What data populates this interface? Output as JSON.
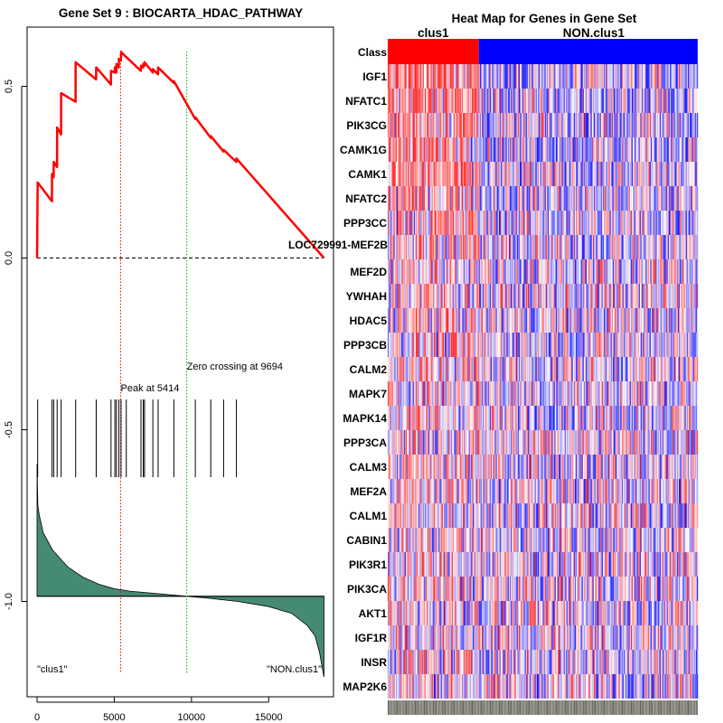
{
  "chart_data": [
    {
      "type": "line",
      "title": "Gene Set  9 : BIOCARTA_HDAC_PATHWAY",
      "x_ticks": [
        0,
        5000,
        10000,
        15000
      ],
      "y_ticks": [
        0.5,
        0.0,
        -0.5,
        -1.0
      ],
      "y_tick_labels": [
        "0.5",
        "0.0",
        "-0.5",
        "-1.0"
      ],
      "xlim": [
        0,
        18700
      ],
      "ylim": [
        -1.25,
        0.67
      ],
      "n_genes": 18583,
      "peak_position": 5414,
      "peak_label": "Peak at 5414",
      "zero_crossing": 9694,
      "zero_crossing_label": "Zero crossing at 9694",
      "left_label": "\"clus1\"",
      "right_label": "\"NON.clus1\"",
      "last_gene_label": "LOC729991-MEF2B",
      "hit_positions": [
        40,
        970,
        1080,
        1300,
        1560,
        2500,
        3830,
        4790,
        5040,
        5140,
        5300,
        5440,
        5780,
        6730,
        6880,
        6960,
        7500,
        7840,
        8860,
        10250,
        11250,
        12080,
        12910
      ],
      "running_es": [
        [
          0,
          0
        ],
        [
          40,
          0.22
        ],
        [
          965,
          0.165
        ],
        [
          970,
          0.245
        ],
        [
          1075,
          0.235
        ],
        [
          1080,
          0.28
        ],
        [
          1295,
          0.265
        ],
        [
          1300,
          0.38
        ],
        [
          1555,
          0.36
        ],
        [
          1560,
          0.48
        ],
        [
          2495,
          0.455
        ],
        [
          2500,
          0.57
        ],
        [
          3825,
          0.52
        ],
        [
          3830,
          0.555
        ],
        [
          4785,
          0.505
        ],
        [
          4790,
          0.545
        ],
        [
          5035,
          0.54
        ],
        [
          5040,
          0.555
        ],
        [
          5135,
          0.54
        ],
        [
          5140,
          0.565
        ],
        [
          5295,
          0.555
        ],
        [
          5300,
          0.58
        ],
        [
          5435,
          0.575
        ],
        [
          5440,
          0.6
        ],
        [
          5775,
          0.585
        ],
        [
          5780,
          0.585
        ],
        [
          6725,
          0.545
        ],
        [
          6730,
          0.56
        ],
        [
          6875,
          0.555
        ],
        [
          6880,
          0.565
        ],
        [
          6955,
          0.56
        ],
        [
          6960,
          0.57
        ],
        [
          7495,
          0.54
        ],
        [
          7500,
          0.55
        ],
        [
          7835,
          0.535
        ],
        [
          7840,
          0.555
        ],
        [
          8855,
          0.51
        ],
        [
          8860,
          0.515
        ],
        [
          10245,
          0.405
        ],
        [
          10250,
          0.41
        ],
        [
          11245,
          0.35
        ],
        [
          11250,
          0.355
        ],
        [
          12075,
          0.31
        ],
        [
          12080,
          0.315
        ],
        [
          12905,
          0.28
        ],
        [
          12910,
          0.29
        ],
        [
          18583,
          0.0
        ]
      ],
      "ranked_metric_profile": [
        [
          0,
          -0.6
        ],
        [
          50,
          -0.72
        ],
        [
          150,
          -0.75
        ],
        [
          400,
          -0.8
        ],
        [
          1000,
          -0.85
        ],
        [
          2000,
          -0.9
        ],
        [
          3000,
          -0.93
        ],
        [
          4000,
          -0.95
        ],
        [
          5000,
          -0.963
        ],
        [
          6000,
          -0.97
        ],
        [
          8000,
          -0.978
        ],
        [
          9694,
          -0.985
        ],
        [
          11000,
          -0.99
        ],
        [
          13000,
          -1.0
        ],
        [
          15000,
          -1.015
        ],
        [
          16500,
          -1.035
        ],
        [
          17500,
          -1.07
        ],
        [
          18000,
          -1.1
        ],
        [
          18300,
          -1.15
        ],
        [
          18500,
          -1.2
        ],
        [
          18583,
          -1.22
        ]
      ],
      "metric_baseline": -0.985
    },
    {
      "type": "heatmap",
      "title": "Heat Map for Genes in Gene Set",
      "class_row_label": "Class",
      "class_groups": [
        {
          "name": "clus1",
          "color": "#ff0000",
          "fraction": 0.294
        },
        {
          "name": "NON.clus1",
          "color": "#0000ff",
          "fraction": 0.706
        }
      ],
      "genes": [
        "IGF1",
        "NFATC1",
        "PIK3CG",
        "CAMK1G",
        "CAMK1",
        "NFATC2",
        "PPP3CC",
        "LOC729991-MEF2B",
        "MEF2D",
        "YWHAH",
        "HDAC5",
        "PPP3CB",
        "CALM2",
        "MAPK7",
        "MAPK14",
        "PPP3CA",
        "CALM3",
        "MEF2A",
        "CALM1",
        "CABIN1",
        "PIK3R1",
        "PIK3CA",
        "AKT1",
        "IGF1R",
        "INSR",
        "MAP2K6"
      ],
      "colors": {
        "high": "#ff0000",
        "low": "#0000ff",
        "mid": "#ffffff"
      },
      "n_sample_columns": 310
    }
  ]
}
